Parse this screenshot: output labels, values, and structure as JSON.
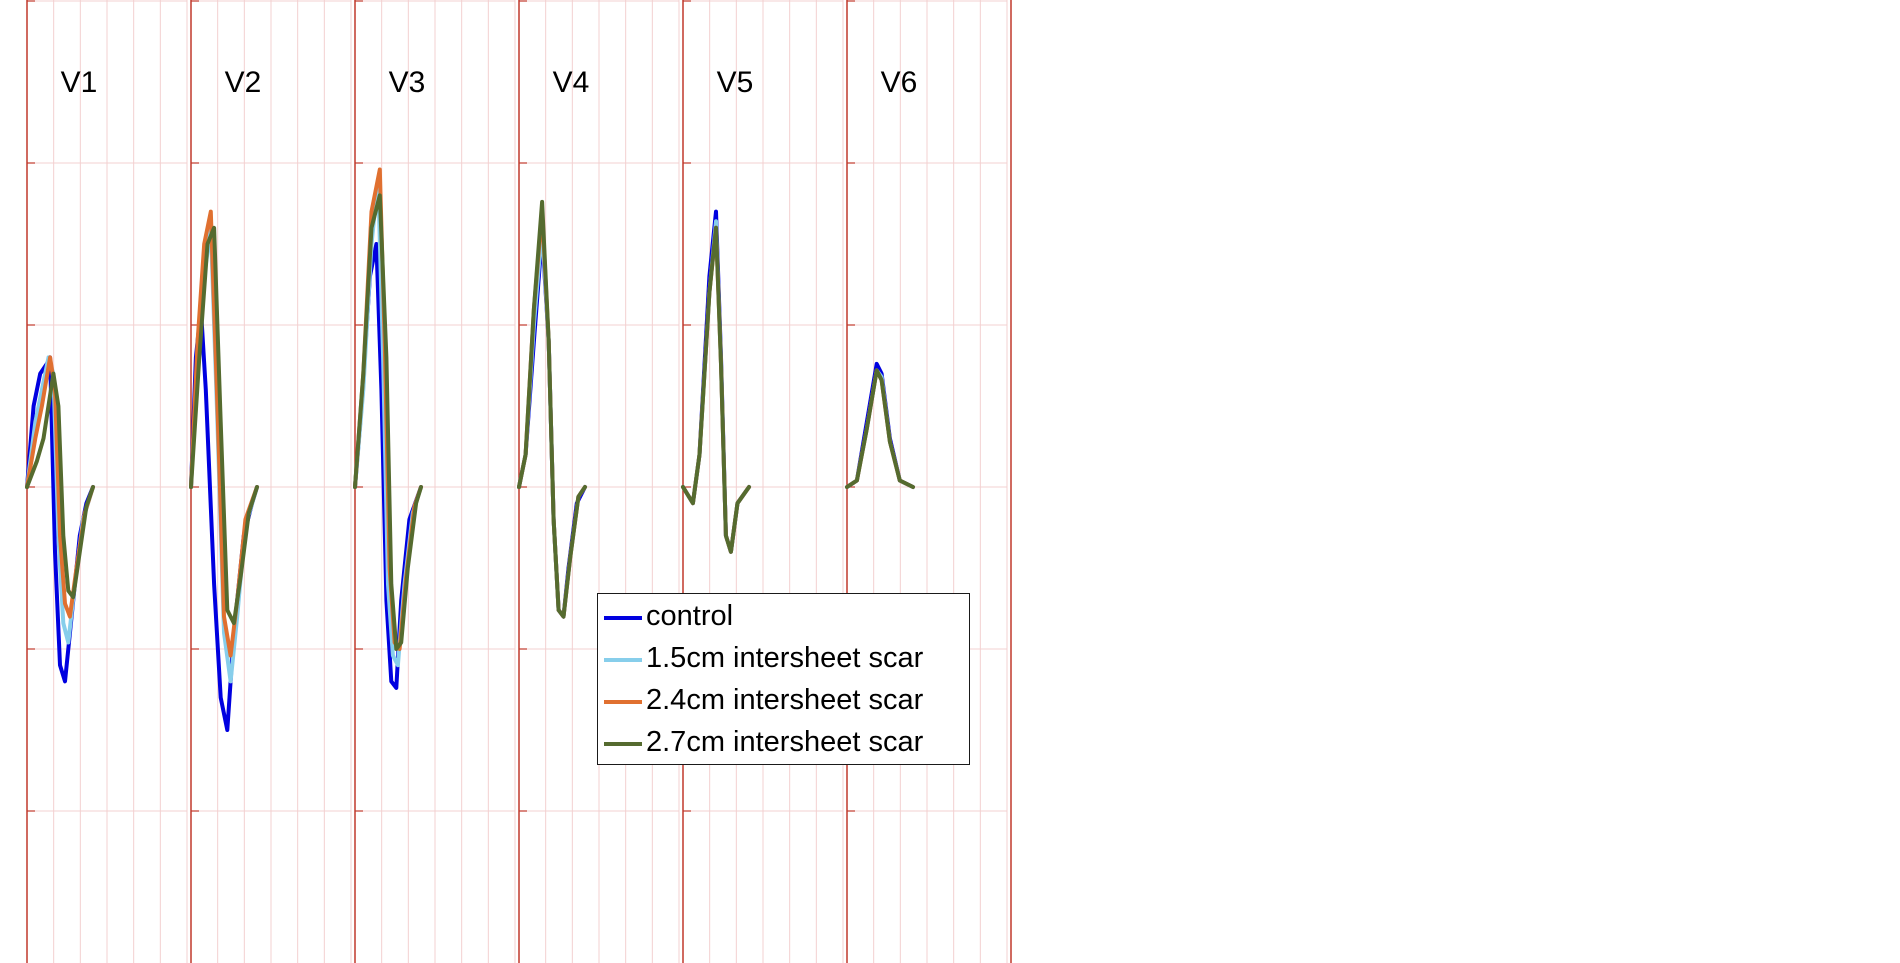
{
  "chart_data": {
    "type": "line",
    "leads": [
      "V1",
      "V2",
      "V3",
      "V4",
      "V5",
      "V6"
    ],
    "y_grid": [
      1.5,
      1.0,
      0.5,
      0.0,
      -0.5,
      -1.0,
      -1.5
    ],
    "ylim": [
      -1.5,
      1.5
    ],
    "xlim": [
      0,
      500
    ],
    "series": [
      {
        "name": "control",
        "color": "#0000e0",
        "leads": {
          "V1": [
            [
              0,
              0
            ],
            [
              20,
              0.25
            ],
            [
              40,
              0.35
            ],
            [
              60,
              0.38
            ],
            [
              70,
              0.4
            ],
            [
              85,
              -0.2
            ],
            [
              100,
              -0.55
            ],
            [
              115,
              -0.6
            ],
            [
              135,
              -0.4
            ],
            [
              160,
              -0.15
            ],
            [
              180,
              -0.05
            ],
            [
              200,
              0
            ]
          ],
          "V2": [
            [
              0,
              0
            ],
            [
              15,
              0.4
            ],
            [
              30,
              0.55
            ],
            [
              45,
              0.3
            ],
            [
              70,
              -0.3
            ],
            [
              90,
              -0.65
            ],
            [
              110,
              -0.75
            ],
            [
              130,
              -0.45
            ],
            [
              160,
              -0.15
            ],
            [
              185,
              -0.05
            ],
            [
              200,
              0
            ]
          ],
          "V3": [
            [
              0,
              0
            ],
            [
              20,
              0.25
            ],
            [
              45,
              0.65
            ],
            [
              65,
              0.75
            ],
            [
              80,
              0.3
            ],
            [
              95,
              -0.35
            ],
            [
              110,
              -0.6
            ],
            [
              125,
              -0.62
            ],
            [
              140,
              -0.35
            ],
            [
              165,
              -0.1
            ],
            [
              200,
              0
            ]
          ],
          "V4": [
            [
              0,
              0
            ],
            [
              20,
              0.1
            ],
            [
              45,
              0.45
            ],
            [
              70,
              0.78
            ],
            [
              90,
              0.45
            ],
            [
              105,
              -0.1
            ],
            [
              120,
              -0.38
            ],
            [
              135,
              -0.4
            ],
            [
              150,
              -0.25
            ],
            [
              175,
              -0.05
            ],
            [
              200,
              0
            ]
          ],
          "V5": [
            [
              0,
              0
            ],
            [
              30,
              -0.05
            ],
            [
              50,
              0.1
            ],
            [
              80,
              0.65
            ],
            [
              100,
              0.85
            ],
            [
              115,
              0.4
            ],
            [
              130,
              -0.15
            ],
            [
              145,
              -0.2
            ],
            [
              165,
              -0.05
            ],
            [
              200,
              0
            ]
          ],
          "V6": [
            [
              0,
              0
            ],
            [
              30,
              0.02
            ],
            [
              60,
              0.2
            ],
            [
              90,
              0.38
            ],
            [
              105,
              0.35
            ],
            [
              130,
              0.15
            ],
            [
              160,
              0.02
            ],
            [
              200,
              0
            ]
          ]
        }
      },
      {
        "name": "1.5cm intersheet scar",
        "color": "#87ceeb",
        "leads": {
          "V1": [
            [
              0,
              0
            ],
            [
              25,
              0.2
            ],
            [
              45,
              0.3
            ],
            [
              65,
              0.4
            ],
            [
              80,
              0.35
            ],
            [
              95,
              -0.15
            ],
            [
              110,
              -0.42
            ],
            [
              125,
              -0.48
            ],
            [
              145,
              -0.3
            ],
            [
              170,
              -0.1
            ],
            [
              200,
              0
            ]
          ],
          "V2": [
            [
              0,
              0
            ],
            [
              20,
              0.4
            ],
            [
              40,
              0.65
            ],
            [
              60,
              0.8
            ],
            [
              80,
              0.2
            ],
            [
              100,
              -0.45
            ],
            [
              120,
              -0.6
            ],
            [
              140,
              -0.4
            ],
            [
              165,
              -0.12
            ],
            [
              200,
              0
            ]
          ],
          "V3": [
            [
              0,
              0
            ],
            [
              25,
              0.3
            ],
            [
              50,
              0.75
            ],
            [
              70,
              0.95
            ],
            [
              85,
              0.4
            ],
            [
              100,
              -0.3
            ],
            [
              115,
              -0.52
            ],
            [
              130,
              -0.55
            ],
            [
              150,
              -0.3
            ],
            [
              175,
              -0.08
            ],
            [
              200,
              0
            ]
          ],
          "V4": [
            [
              0,
              0
            ],
            [
              20,
              0.1
            ],
            [
              45,
              0.5
            ],
            [
              70,
              0.8
            ],
            [
              90,
              0.45
            ],
            [
              105,
              -0.1
            ],
            [
              120,
              -0.38
            ],
            [
              135,
              -0.4
            ],
            [
              155,
              -0.22
            ],
            [
              180,
              -0.03
            ],
            [
              200,
              0
            ]
          ],
          "V5": [
            [
              0,
              0
            ],
            [
              30,
              -0.05
            ],
            [
              50,
              0.1
            ],
            [
              80,
              0.6
            ],
            [
              100,
              0.82
            ],
            [
              115,
              0.38
            ],
            [
              130,
              -0.15
            ],
            [
              145,
              -0.2
            ],
            [
              165,
              -0.05
            ],
            [
              200,
              0
            ]
          ],
          "V6": [
            [
              0,
              0
            ],
            [
              30,
              0.02
            ],
            [
              60,
              0.18
            ],
            [
              90,
              0.36
            ],
            [
              105,
              0.34
            ],
            [
              130,
              0.14
            ],
            [
              160,
              0.02
            ],
            [
              200,
              0
            ]
          ]
        }
      },
      {
        "name": "2.4cm intersheet scar",
        "color": "#e07030",
        "leads": {
          "V1": [
            [
              0,
              0
            ],
            [
              25,
              0.15
            ],
            [
              45,
              0.25
            ],
            [
              70,
              0.4
            ],
            [
              85,
              0.3
            ],
            [
              100,
              -0.15
            ],
            [
              115,
              -0.36
            ],
            [
              130,
              -0.4
            ],
            [
              150,
              -0.25
            ],
            [
              175,
              -0.08
            ],
            [
              200,
              0
            ]
          ],
          "V2": [
            [
              0,
              0
            ],
            [
              20,
              0.45
            ],
            [
              40,
              0.75
            ],
            [
              60,
              0.85
            ],
            [
              80,
              0.25
            ],
            [
              100,
              -0.4
            ],
            [
              120,
              -0.52
            ],
            [
              140,
              -0.35
            ],
            [
              165,
              -0.1
            ],
            [
              200,
              0
            ]
          ],
          "V3": [
            [
              0,
              0
            ],
            [
              25,
              0.35
            ],
            [
              50,
              0.85
            ],
            [
              75,
              0.98
            ],
            [
              90,
              0.45
            ],
            [
              105,
              -0.25
            ],
            [
              120,
              -0.48
            ],
            [
              135,
              -0.5
            ],
            [
              155,
              -0.28
            ],
            [
              180,
              -0.06
            ],
            [
              200,
              0
            ]
          ],
          "V4": [
            [
              0,
              0
            ],
            [
              20,
              0.1
            ],
            [
              45,
              0.55
            ],
            [
              70,
              0.85
            ],
            [
              90,
              0.45
            ],
            [
              105,
              -0.1
            ],
            [
              120,
              -0.38
            ],
            [
              135,
              -0.4
            ],
            [
              155,
              -0.22
            ],
            [
              180,
              -0.03
            ],
            [
              200,
              0
            ]
          ],
          "V5": [
            [
              0,
              0
            ],
            [
              30,
              -0.05
            ],
            [
              50,
              0.1
            ],
            [
              80,
              0.6
            ],
            [
              100,
              0.8
            ],
            [
              115,
              0.38
            ],
            [
              130,
              -0.15
            ],
            [
              145,
              -0.2
            ],
            [
              165,
              -0.05
            ],
            [
              200,
              0
            ]
          ],
          "V6": [
            [
              0,
              0
            ],
            [
              30,
              0.02
            ],
            [
              60,
              0.18
            ],
            [
              90,
              0.36
            ],
            [
              105,
              0.33
            ],
            [
              130,
              0.14
            ],
            [
              160,
              0.02
            ],
            [
              200,
              0
            ]
          ]
        }
      },
      {
        "name": "2.7cm intersheet scar",
        "color": "#556b2f",
        "leads": {
          "V1": [
            [
              0,
              0
            ],
            [
              30,
              0.08
            ],
            [
              50,
              0.15
            ],
            [
              80,
              0.35
            ],
            [
              95,
              0.25
            ],
            [
              110,
              -0.15
            ],
            [
              125,
              -0.32
            ],
            [
              140,
              -0.34
            ],
            [
              160,
              -0.2
            ],
            [
              180,
              -0.06
            ],
            [
              200,
              0
            ]
          ],
          "V2": [
            [
              0,
              0
            ],
            [
              25,
              0.4
            ],
            [
              50,
              0.75
            ],
            [
              70,
              0.8
            ],
            [
              90,
              0.2
            ],
            [
              110,
              -0.38
            ],
            [
              130,
              -0.42
            ],
            [
              150,
              -0.28
            ],
            [
              175,
              -0.08
            ],
            [
              200,
              0
            ]
          ],
          "V3": [
            [
              0,
              0
            ],
            [
              25,
              0.35
            ],
            [
              50,
              0.8
            ],
            [
              75,
              0.9
            ],
            [
              95,
              0.4
            ],
            [
              110,
              -0.3
            ],
            [
              125,
              -0.5
            ],
            [
              140,
              -0.48
            ],
            [
              160,
              -0.25
            ],
            [
              185,
              -0.05
            ],
            [
              200,
              0
            ]
          ],
          "V4": [
            [
              0,
              0
            ],
            [
              20,
              0.1
            ],
            [
              45,
              0.55
            ],
            [
              70,
              0.88
            ],
            [
              90,
              0.45
            ],
            [
              105,
              -0.1
            ],
            [
              120,
              -0.38
            ],
            [
              135,
              -0.4
            ],
            [
              155,
              -0.22
            ],
            [
              180,
              -0.03
            ],
            [
              200,
              0
            ]
          ],
          "V5": [
            [
              0,
              0
            ],
            [
              30,
              -0.05
            ],
            [
              50,
              0.1
            ],
            [
              80,
              0.6
            ],
            [
              100,
              0.8
            ],
            [
              115,
              0.38
            ],
            [
              130,
              -0.15
            ],
            [
              145,
              -0.2
            ],
            [
              165,
              -0.05
            ],
            [
              200,
              0
            ]
          ],
          "V6": [
            [
              0,
              0
            ],
            [
              30,
              0.02
            ],
            [
              60,
              0.18
            ],
            [
              90,
              0.36
            ],
            [
              105,
              0.33
            ],
            [
              130,
              0.14
            ],
            [
              160,
              0.02
            ],
            [
              200,
              0
            ]
          ]
        }
      }
    ],
    "legend_position": "lower-middle",
    "grid": true
  }
}
